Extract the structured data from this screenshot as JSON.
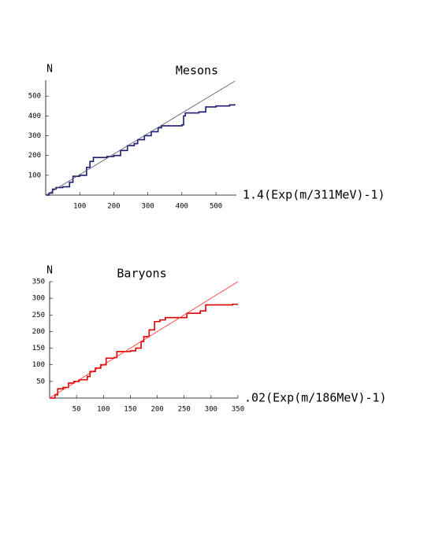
{
  "chart_data": [
    {
      "type": "line",
      "title": "Mesons",
      "ylabel": "N",
      "xlabel": "1.4(Exp(m/311MeV)-1)",
      "xlim": [
        0,
        560
      ],
      "ylim": [
        0,
        580
      ],
      "xticks": [
        100,
        200,
        300,
        400,
        500
      ],
      "yticks": [
        100,
        200,
        300,
        400,
        500
      ],
      "series": [
        {
          "color": "#1c1c6e",
          "step": "post",
          "x": [
            0,
            10,
            20,
            30,
            50,
            70,
            80,
            100,
            120,
            130,
            140,
            180,
            200,
            220,
            240,
            260,
            270,
            290,
            310,
            330,
            340,
            400,
            405,
            410,
            450,
            470,
            500,
            540,
            555
          ],
          "values": [
            0,
            10,
            30,
            38,
            42,
            65,
            95,
            100,
            140,
            170,
            190,
            195,
            200,
            225,
            250,
            260,
            280,
            300,
            320,
            340,
            350,
            355,
            400,
            415,
            420,
            445,
            450,
            455,
            460
          ]
        },
        {
          "color": "#555577",
          "x": [
            0,
            555
          ],
          "values": [
            0,
            575
          ]
        }
      ]
    },
    {
      "type": "line",
      "title": "Baryons",
      "ylabel": "N",
      "xlabel": ".02(Exp(m/186MeV)-1)",
      "xlim": [
        0,
        350
      ],
      "ylim": [
        0,
        350
      ],
      "xticks": [
        50,
        100,
        150,
        200,
        250,
        300,
        350
      ],
      "yticks": [
        50,
        100,
        150,
        200,
        250,
        300,
        350
      ],
      "series": [
        {
          "color": "#e00000",
          "step": "post",
          "x": [
            0,
            10,
            15,
            25,
            35,
            45,
            55,
            70,
            75,
            85,
            95,
            105,
            120,
            125,
            150,
            160,
            170,
            175,
            185,
            195,
            205,
            215,
            255,
            280,
            290,
            340,
            350
          ],
          "values": [
            0,
            10,
            28,
            32,
            45,
            50,
            55,
            65,
            80,
            90,
            100,
            120,
            122,
            140,
            142,
            150,
            170,
            185,
            205,
            230,
            235,
            242,
            255,
            262,
            280,
            282,
            282
          ]
        },
        {
          "color": "#ff3030",
          "x": [
            0,
            350
          ],
          "values": [
            0,
            350
          ]
        }
      ]
    }
  ]
}
